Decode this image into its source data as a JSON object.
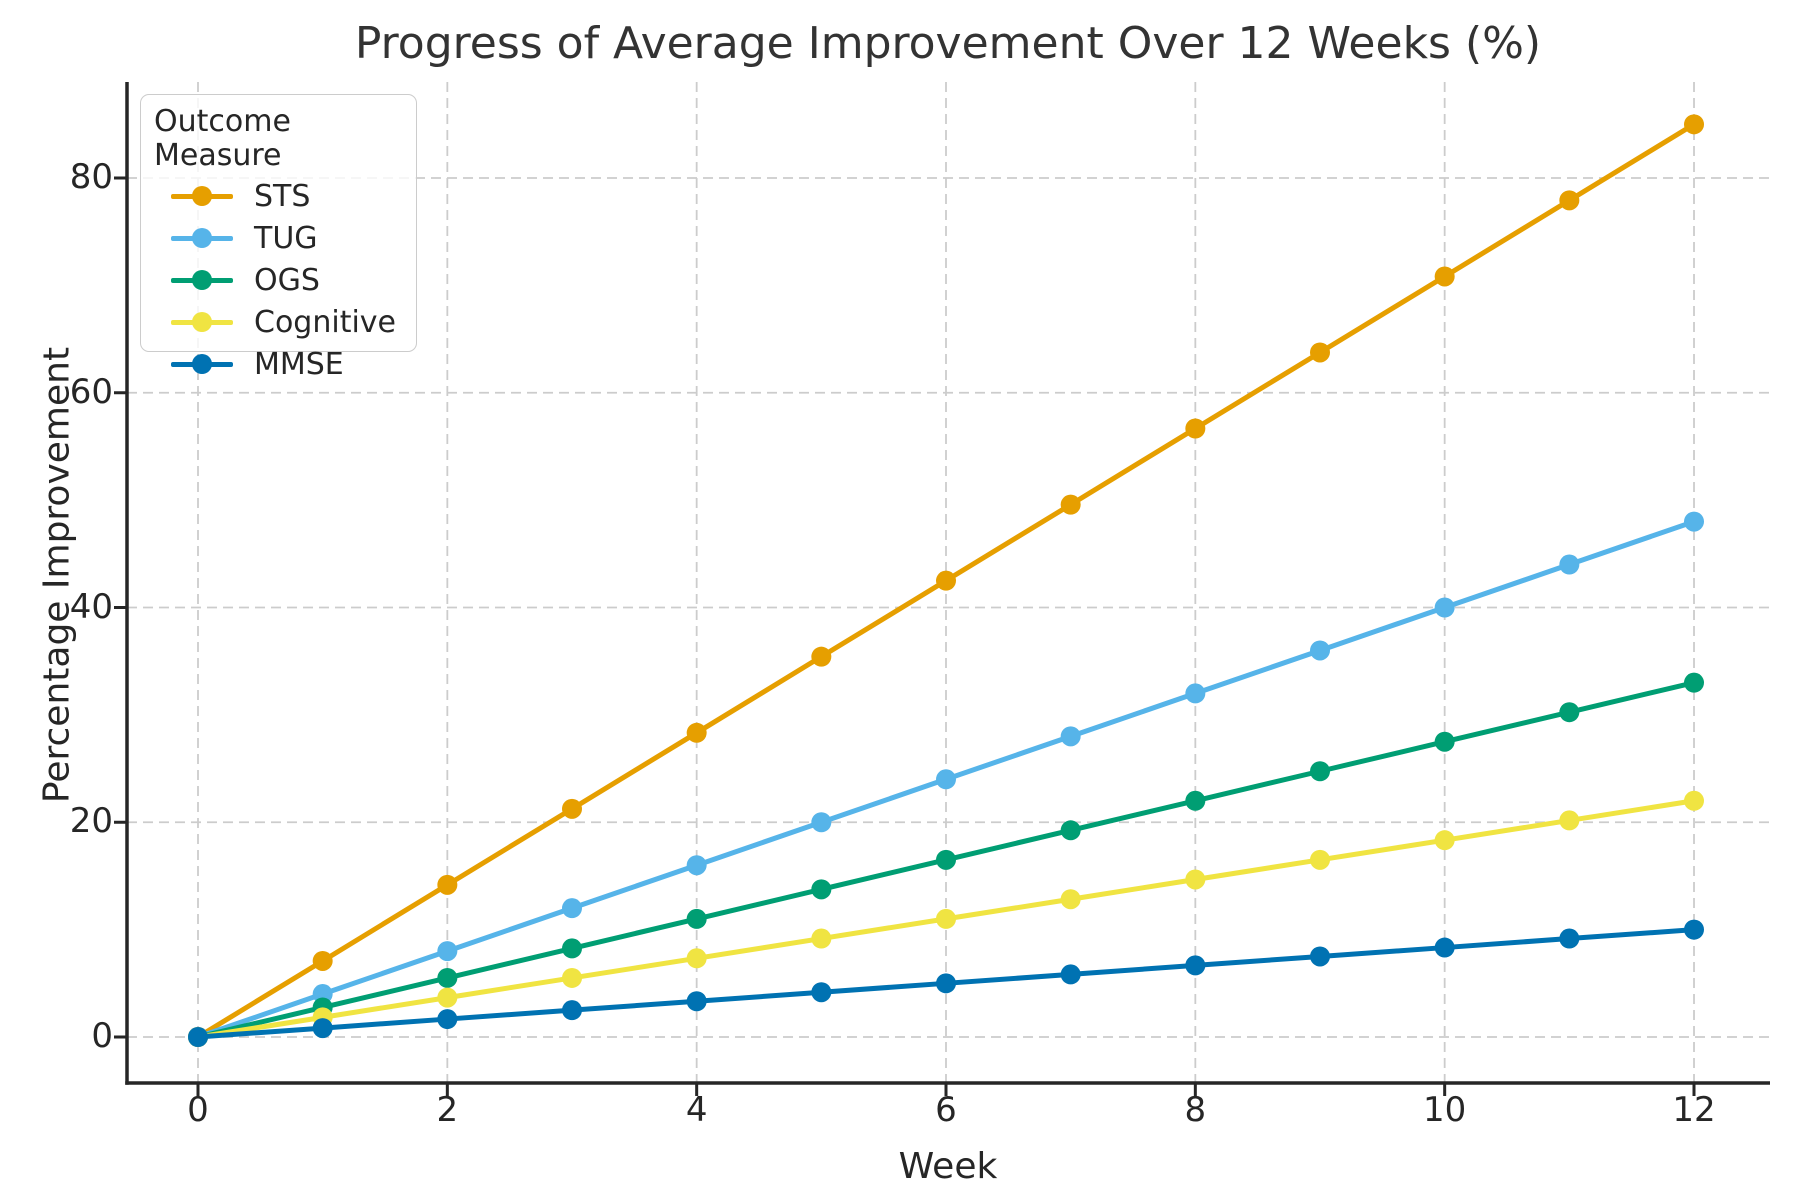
{
  "figure": {
    "background": "#ffffff",
    "text_color": "#262626",
    "grid_color": "#cccccc",
    "spine_color": "#262626"
  },
  "chart_data": {
    "type": "line",
    "title": "Progress of Average Improvement Over 12 Weeks (%)",
    "xlabel": "Week",
    "ylabel": "Percentage Improvement",
    "legend_title": "Outcome Measure",
    "legend_position": "upper left",
    "grid": true,
    "grid_style": "dashed",
    "x": [
      0,
      1,
      2,
      3,
      4,
      5,
      6,
      7,
      8,
      9,
      10,
      11,
      12
    ],
    "xticks": [
      0,
      2,
      4,
      6,
      8,
      10,
      12
    ],
    "yticks": [
      0,
      20,
      40,
      60,
      80
    ],
    "xlim": [
      -0.57,
      12.61
    ],
    "ylim": [
      -4.3,
      88.9
    ],
    "series": [
      {
        "name": "STS",
        "color": "#E69F00",
        "values": [
          0,
          7.08,
          14.17,
          21.25,
          28.33,
          35.42,
          42.5,
          49.58,
          56.67,
          63.75,
          70.83,
          77.92,
          85
        ]
      },
      {
        "name": "TUG",
        "color": "#56B4E9",
        "values": [
          0,
          4,
          8,
          12,
          16,
          20,
          24,
          28,
          32,
          36,
          40,
          44,
          48
        ]
      },
      {
        "name": "OGS",
        "color": "#009E73",
        "values": [
          0,
          2.75,
          5.5,
          8.25,
          11,
          13.75,
          16.5,
          19.25,
          22,
          24.75,
          27.5,
          30.25,
          33
        ]
      },
      {
        "name": "Cognitive",
        "color": "#F0E442",
        "values": [
          0,
          1.83,
          3.67,
          5.5,
          7.33,
          9.17,
          11,
          12.83,
          14.67,
          16.5,
          18.33,
          20.17,
          22
        ]
      },
      {
        "name": "MMSE",
        "color": "#0072B2",
        "values": [
          0,
          0.83,
          1.67,
          2.5,
          3.33,
          4.17,
          5,
          5.83,
          6.67,
          7.5,
          8.33,
          9.17,
          10
        ]
      }
    ]
  }
}
